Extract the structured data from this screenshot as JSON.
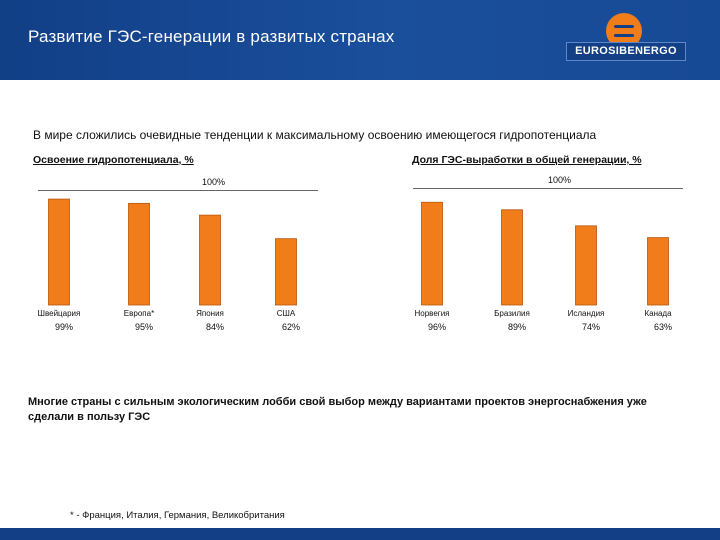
{
  "header": {
    "title": "Развитие ГЭС-генерации в развитых странах",
    "logo_text": "EUROSIBENERGO",
    "logo_icon": "eurosibenergo-logo-icon"
  },
  "subtitle": "В мире сложились очевидные тенденции к максимальному освоению имеющегося гидропотенциала",
  "colors": {
    "bar": "#f07c1a",
    "bar_edge": "#b8560c",
    "header": "#123f86"
  },
  "chart_data": [
    {
      "type": "bar",
      "title": "Освоение гидропотенциала, %",
      "scale_label": "100%",
      "categories": [
        "Швейцария",
        "Европа*",
        "Япония",
        "США"
      ],
      "values": [
        99,
        95,
        84,
        62
      ],
      "value_labels": [
        "99%",
        "95%",
        "84%",
        "62%"
      ],
      "ylim": [
        0,
        100
      ]
    },
    {
      "type": "bar",
      "title": "Доля ГЭС-выработки в общей генерации, %",
      "scale_label": "100%",
      "categories": [
        "Норвегия",
        "Бразилия",
        "Исландия",
        "Канада"
      ],
      "values": [
        96,
        89,
        74,
        63
      ],
      "value_labels": [
        "96%",
        "89%",
        "74%",
        "63%"
      ],
      "ylim": [
        0,
        100
      ]
    }
  ],
  "bottom_note": "Многие страны с сильным экологическим лобби свой выбор между вариантами проектов энергоснабжения уже сделали в пользу ГЭС",
  "footnote": "* - Франция, Италия, Германия, Великобритания"
}
